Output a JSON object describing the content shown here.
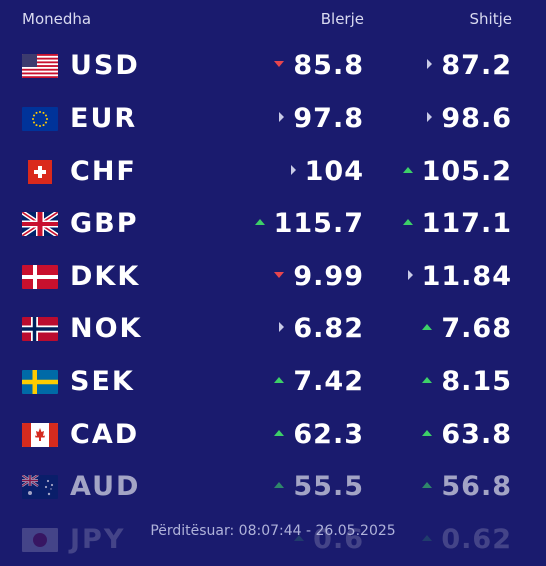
{
  "header": {
    "currency": "Monedha",
    "buy": "Blerje",
    "sell": "Shitje"
  },
  "rows": [
    {
      "code": "USD",
      "flag": "us-flag-icon",
      "buy": "85.8",
      "buy_trend": "down",
      "sell": "87.2",
      "sell_trend": "flat"
    },
    {
      "code": "EUR",
      "flag": "eu-flag-icon",
      "buy": "97.8",
      "buy_trend": "flat",
      "sell": "98.6",
      "sell_trend": "flat"
    },
    {
      "code": "CHF",
      "flag": "ch-flag-icon",
      "buy": "104",
      "buy_trend": "flat",
      "sell": "105.2",
      "sell_trend": "up"
    },
    {
      "code": "GBP",
      "flag": "gb-flag-icon",
      "buy": "115.7",
      "buy_trend": "up",
      "sell": "117.1",
      "sell_trend": "up"
    },
    {
      "code": "DKK",
      "flag": "dk-flag-icon",
      "buy": "9.99",
      "buy_trend": "down",
      "sell": "11.84",
      "sell_trend": "flat"
    },
    {
      "code": "NOK",
      "flag": "no-flag-icon",
      "buy": "6.82",
      "buy_trend": "flat",
      "sell": "7.68",
      "sell_trend": "up"
    },
    {
      "code": "SEK",
      "flag": "se-flag-icon",
      "buy": "7.42",
      "buy_trend": "up",
      "sell": "8.15",
      "sell_trend": "up"
    },
    {
      "code": "CAD",
      "flag": "ca-flag-icon",
      "buy": "62.3",
      "buy_trend": "up",
      "sell": "63.8",
      "sell_trend": "up"
    },
    {
      "code": "AUD",
      "flag": "au-flag-icon",
      "buy": "55.5",
      "buy_trend": "up",
      "sell": "56.8",
      "sell_trend": "up"
    },
    {
      "code": "JPY",
      "flag": "jp-flag-icon",
      "buy": "0.6",
      "buy_trend": "up",
      "sell": "0.62",
      "sell_trend": "up"
    }
  ],
  "footer": {
    "updated": "Përditësuar: 08:07:44 - 26.05.2025"
  },
  "colors": {
    "background": "#1a1b6e",
    "up": "#3dd068",
    "down": "#e8454d",
    "flat": "#c9cbe6"
  }
}
